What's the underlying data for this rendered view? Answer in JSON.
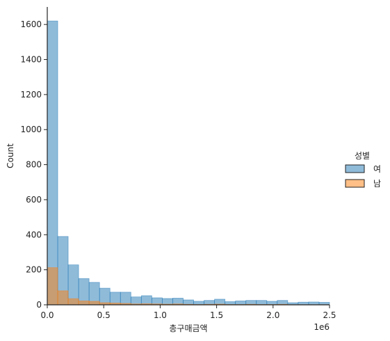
{
  "chart_data": {
    "type": "bar",
    "subtype": "overlapping-histogram",
    "xlabel": "총구매금액",
    "ylabel": "Count",
    "x_offset_label": "1e6",
    "xlim": [
      0,
      2500000
    ],
    "ylim": [
      0,
      1700
    ],
    "x_ticks": [
      0,
      500000,
      1000000,
      1500000,
      2000000,
      2500000
    ],
    "x_tick_labels": [
      "0.0",
      "0.5",
      "1.0",
      "1.5",
      "2.0",
      "2.5"
    ],
    "y_ticks": [
      0,
      200,
      400,
      600,
      800,
      1000,
      1200,
      1400,
      1600
    ],
    "bin_edges": [
      0,
      92593,
      185185,
      277778,
      370370,
      462963,
      555556,
      648148,
      740741,
      833333,
      925926,
      1018519,
      1111111,
      1203704,
      1296296,
      1388889,
      1481481,
      1574074,
      1666667,
      1759259,
      1851852,
      1944444,
      2037037,
      2129630,
      2222222,
      2314815,
      2407407,
      2500000
    ],
    "grid": false,
    "legend_position": "right",
    "legend_title": "성별",
    "series": [
      {
        "name": "여",
        "color": "#1f77b4",
        "values": [
          1620,
          390,
          228,
          150,
          128,
          95,
          72,
          72,
          45,
          52,
          40,
          36,
          38,
          28,
          20,
          25,
          32,
          18,
          22,
          25,
          25,
          20,
          25,
          12,
          15,
          16,
          14
        ]
      },
      {
        "name": "남",
        "color": "#ff7f0e",
        "values": [
          212,
          80,
          35,
          22,
          20,
          12,
          10,
          8,
          5,
          6,
          5,
          4,
          5,
          3,
          2,
          3,
          4,
          2,
          2,
          3,
          2,
          2,
          3,
          1,
          1,
          1,
          1
        ]
      }
    ]
  }
}
